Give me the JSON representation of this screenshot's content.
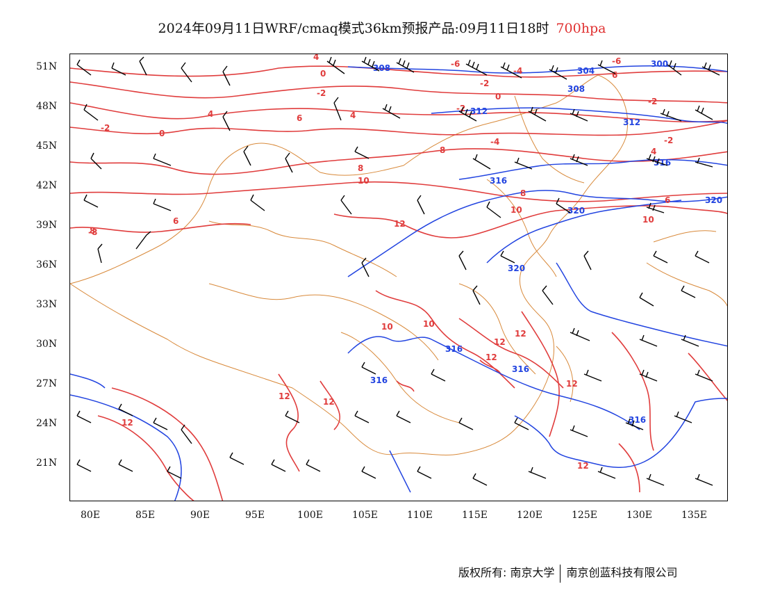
{
  "title": {
    "main": "2024年09月11日WRF/cmaq模式36km预报产品:09月11日18时",
    "level": "700hpa"
  },
  "colors": {
    "temperature": "#e03c3c",
    "height": "#2244e0",
    "border": "#d8893a",
    "barb": "#000000"
  },
  "axes": {
    "lat_labels": [
      "51N",
      "48N",
      "45N",
      "42N",
      "39N",
      "36N",
      "33N",
      "30N",
      "27N",
      "24N",
      "21N"
    ],
    "lon_labels": [
      "80E",
      "85E",
      "90E",
      "95E",
      "100E",
      "105E",
      "110E",
      "115E",
      "120E",
      "125E",
      "130E",
      "135E"
    ]
  },
  "contours": {
    "temperature_labels": [
      "4",
      "0",
      "-6",
      "-4",
      "-6",
      "-2",
      "-2",
      "0",
      "-2",
      "4",
      "-2",
      "-2",
      "0",
      "4",
      "6",
      "6",
      "-4",
      "-2",
      "8",
      "4",
      "10",
      "8",
      "8",
      "10",
      "6",
      "10",
      "6",
      "12",
      "-8",
      "8",
      "10",
      "10",
      "12",
      "12",
      "12",
      "12",
      "12",
      "12",
      "12",
      "12"
    ],
    "height_labels": [
      "308",
      "304",
      "300",
      "308",
      "312",
      "312",
      "316",
      "316",
      "320",
      "320",
      "320",
      "316",
      "316",
      "316",
      "316"
    ]
  },
  "footer": {
    "copyright": "版权所有: 南京大学",
    "company": "南京创蓝科技有限公司"
  }
}
